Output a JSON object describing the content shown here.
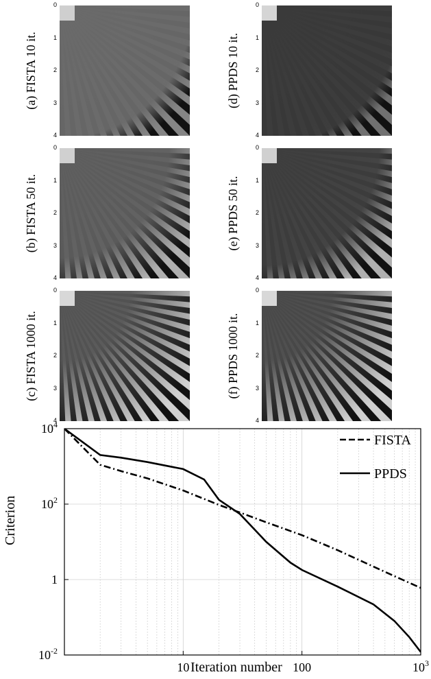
{
  "image_panels": [
    {
      "label": "(a) FISTA 10 it.",
      "ticks": [
        "0",
        "1",
        "2",
        "3",
        "4"
      ],
      "style": "fista10"
    },
    {
      "label": "(d) PPDS 10 it.",
      "ticks": [
        "0",
        "1",
        "2",
        "3",
        "4"
      ],
      "style": "ppds10"
    },
    {
      "label": "(b) FISTA 50 it.",
      "ticks": [
        "0",
        "1",
        "2",
        "3",
        "4"
      ],
      "style": "fista50"
    },
    {
      "label": "(e) PPDS 50 it.",
      "ticks": [
        "0",
        "1",
        "2",
        "3",
        "4"
      ],
      "style": "ppds50"
    },
    {
      "label": "(c) FISTA 1000 it.",
      "ticks": [
        "0",
        "1",
        "2",
        "3",
        "4"
      ],
      "style": "fista1000"
    },
    {
      "label": "(f) PPDS 1000 it.",
      "ticks": [
        "0",
        "1",
        "2",
        "3",
        "4"
      ],
      "style": "ppds1000"
    }
  ],
  "chart_data": {
    "type": "line",
    "xlabel": "Iteration number",
    "ylabel": "Criterion",
    "xscale": "log",
    "yscale": "log",
    "xlim": [
      1,
      1000
    ],
    "ylim": [
      0.01,
      10000
    ],
    "x_tick_labels": [
      "10",
      "100",
      "10^3"
    ],
    "y_tick_labels": [
      "10^4",
      "10^2",
      "1",
      "10^-2"
    ],
    "grid": true,
    "legend_position": "top-right",
    "series": [
      {
        "name": "FISTA",
        "style": "dashdot",
        "x": [
          1,
          2,
          3,
          5,
          10,
          20,
          30,
          50,
          100,
          200,
          500,
          1000
        ],
        "y": [
          10000,
          1100,
          750,
          480,
          230,
          95,
          60,
          33,
          15,
          6,
          1.6,
          0.6
        ]
      },
      {
        "name": "PPDS",
        "style": "solid",
        "x": [
          1,
          2,
          3,
          5,
          10,
          15,
          20,
          30,
          50,
          80,
          100,
          200,
          400,
          600,
          800,
          1000
        ],
        "y": [
          10000,
          2000,
          1700,
          1300,
          850,
          450,
          130,
          55,
          10,
          2.8,
          1.8,
          0.65,
          0.22,
          0.08,
          0.03,
          0.012
        ]
      }
    ]
  }
}
